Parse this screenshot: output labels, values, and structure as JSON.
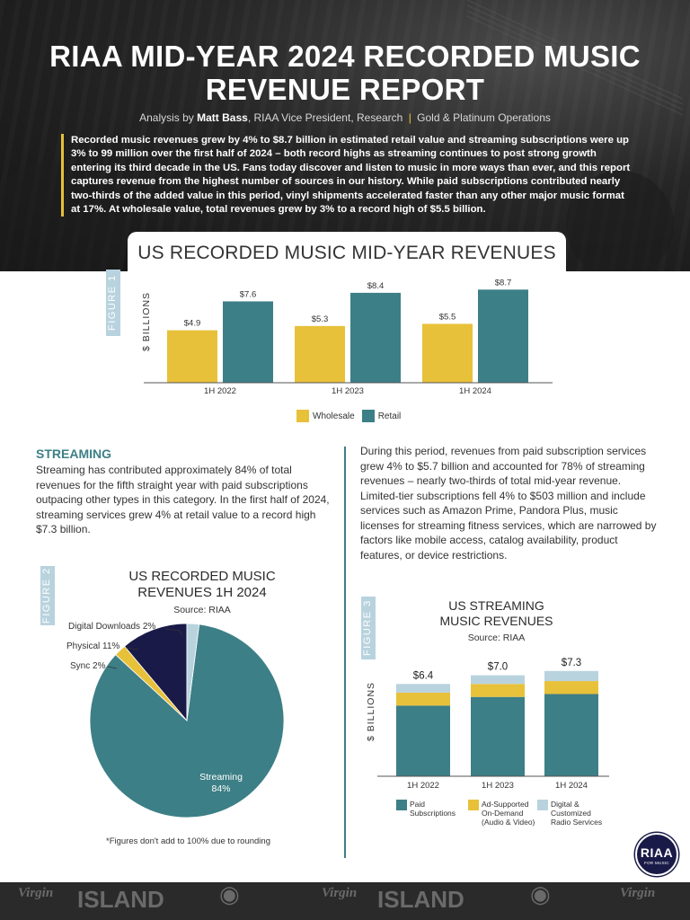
{
  "header": {
    "title_line1": "RIAA MID-YEAR 2024 RECORDED MUSIC",
    "title_line2": "REVENUE REPORT",
    "byline_prefix": "Analysis by ",
    "byline_name": "Matt Bass",
    "byline_role": ", RIAA Vice President, Research ",
    "byline_sep": "|",
    "byline_dept": " Gold & Platinum Operations",
    "intro": "Recorded music revenues grew by 4% to $8.7 billion in estimated retail value and streaming subscriptions were up 3% to 99 million over the first half of 2024 – both record highs as streaming continues to post strong growth entering its third decade in the US. Fans today discover and listen to music in more ways than ever, and this report captures revenue from the highest number of sources in our history. While paid subscriptions contributed nearly two-thirds of the added value in this period, vinyl shipments accelerated faster than any other major music format at 17%. At wholesale value, total revenues grew by 3% to a record high of $5.5 billion."
  },
  "figure1": {
    "label": "FIGURE 1",
    "title": "US RECORDED MUSIC MID-YEAR REVENUES",
    "legend": [
      "Wholesale",
      "Retail"
    ]
  },
  "streaming": {
    "heading": "STREAMING",
    "body": "Streaming has contributed approximately 84% of total revenues for the fifth straight year with paid subscriptions outpacing other types in this category. In the first half of 2024, streaming services grew 4% at retail value to a record high $7.3 billion.",
    "right_body": "During this period, revenues from paid subscription services grew 4% to $5.7 billion and accounted for 78% of streaming revenues – nearly two-thirds of total mid-year revenue. Limited-tier subscriptions fell 4% to $503 million and include services such as Amazon Prime, Pandora Plus, music licenses for streaming fitness services, which are narrowed by factors like mobile access, catalog availability, product features, or device restrictions."
  },
  "figure2": {
    "label": "FIGURE 2",
    "title_line1": "US RECORDED MUSIC",
    "title_line2": "REVENUES 1H 2024",
    "source": "Source: RIAA",
    "note": "*Figures don't add to 100% due to rounding",
    "labels": {
      "digital": "Digital Downloads 2%",
      "physical": "Physical 11%",
      "sync": "Sync 2%",
      "streaming_name": "Streaming",
      "streaming_pct": "84%"
    }
  },
  "figure3": {
    "label": "FIGURE 3",
    "title_line1": "US STREAMING",
    "title_line2": "MUSIC REVENUES",
    "source": "Source: RIAA",
    "legend": {
      "paid_1": "Paid",
      "paid_2": "Subscriptions",
      "ad_1": "Ad-Supported",
      "ad_2": "On-Demand",
      "ad_3": "(Audio & Video)",
      "digital_1": "Digital &",
      "digital_2": "Customized",
      "digital_3": "Radio Services"
    }
  },
  "logo": {
    "name": "RIAA",
    "tagline": "FOR MUSIC"
  },
  "footer": {
    "labels": [
      "Virgin",
      "ISLAND",
      "Virgin",
      "ISLAND",
      "Virgin"
    ]
  },
  "colors": {
    "teal": "#3d7f86",
    "gold": "#e8c13a",
    "navy": "#1a1a48",
    "light_blue": "#b8d3de",
    "label_blue": "#b8d3de"
  },
  "chart_data": [
    {
      "type": "bar",
      "title": "US RECORDED MUSIC MID-YEAR REVENUES",
      "ylabel": "$ BILLIONS",
      "categories": [
        "1H 2022",
        "1H 2023",
        "1H 2024"
      ],
      "series": [
        {
          "name": "Wholesale",
          "values": [
            4.9,
            5.3,
            5.5
          ],
          "labels": [
            "$4.9",
            "$5.3",
            "$5.5"
          ],
          "color": "#e8c13a"
        },
        {
          "name": "Retail",
          "values": [
            7.6,
            8.4,
            8.7
          ],
          "labels": [
            "$7.6",
            "$8.4",
            "$8.7"
          ],
          "color": "#3d7f86"
        }
      ],
      "ylim": [
        0,
        9.4
      ],
      "legend": "bottom",
      "grid": false
    },
    {
      "type": "pie",
      "title": "US RECORDED MUSIC REVENUES 1H 2024",
      "source": "Source: RIAA",
      "slices": [
        {
          "name": "Streaming",
          "value": 84,
          "color": "#3d7f86"
        },
        {
          "name": "Sync",
          "value": 2,
          "color": "#e8c13a"
        },
        {
          "name": "Physical",
          "value": 11,
          "color": "#1a1a48"
        },
        {
          "name": "Digital Downloads",
          "value": 2,
          "color": "#b8d3de"
        }
      ]
    },
    {
      "type": "bar",
      "stacked": true,
      "title": "US STREAMING MUSIC REVENUES",
      "source": "Source: RIAA",
      "ylabel": "$ BILLIONS",
      "categories": [
        "1H 2022",
        "1H 2023",
        "1H 2024"
      ],
      "totals": [
        6.4,
        7.0,
        7.3
      ],
      "total_labels": [
        "$6.4",
        "$7.0",
        "$7.3"
      ],
      "series": [
        {
          "name": "Paid Subscriptions",
          "values": [
            4.9,
            5.5,
            5.7
          ],
          "color": "#3d7f86"
        },
        {
          "name": "Ad-Supported On-Demand (Audio & Video)",
          "values": [
            0.9,
            0.9,
            0.9
          ],
          "color": "#e8c13a"
        },
        {
          "name": "Digital & Customized Radio Services",
          "values": [
            0.6,
            0.6,
            0.7
          ],
          "color": "#b8d3de"
        }
      ],
      "ylim": [
        0,
        7.6
      ],
      "legend": "bottom",
      "grid": false
    }
  ]
}
